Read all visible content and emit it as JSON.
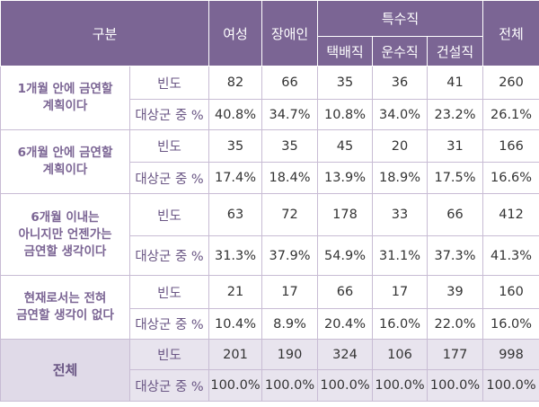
{
  "header": {
    "category": "구분",
    "female": "여성",
    "disabled": "장애인",
    "special_job": "특수직",
    "taxi": "택배직",
    "transport": "운수직",
    "construction": "건설직",
    "total": "전체"
  },
  "metric_labels": {
    "freq": "빈도",
    "pct": "대상군 중 %"
  },
  "rows": [
    {
      "label_lines": [
        "1개월 안에 금연할",
        "계획이다"
      ],
      "freq": [
        "82",
        "66",
        "35",
        "36",
        "41",
        "260"
      ],
      "pct": [
        "40.8%",
        "34.7%",
        "10.8%",
        "34.0%",
        "23.2%",
        "26.1%"
      ]
    },
    {
      "label_lines": [
        "6개월 안에 금연할",
        "계획이다"
      ],
      "freq": [
        "35",
        "35",
        "45",
        "20",
        "31",
        "166"
      ],
      "pct": [
        "17.4%",
        "18.4%",
        "13.9%",
        "18.9%",
        "17.5%",
        "16.6%"
      ]
    },
    {
      "label_lines": [
        "6개월 이내는",
        "아니지만 언젠가는",
        "금연할 생각이다"
      ],
      "freq": [
        "63",
        "72",
        "178",
        "33",
        "66",
        "412"
      ],
      "pct": [
        "31.3%",
        "37.9%",
        "54.9%",
        "31.1%",
        "37.3%",
        "41.3%"
      ]
    },
    {
      "label_lines": [
        "현재로서는 전혀",
        "금연할 생각이 없다"
      ],
      "freq": [
        "21",
        "17",
        "66",
        "17",
        "39",
        "160"
      ],
      "pct": [
        "10.4%",
        "8.9%",
        "20.4%",
        "16.0%",
        "22.0%",
        "16.0%"
      ]
    }
  ],
  "total_row": {
    "label": "전체",
    "freq": [
      "201",
      "190",
      "324",
      "106",
      "177",
      "998"
    ],
    "pct": [
      "100.0%",
      "100.0%",
      "100.0%",
      "100.0%",
      "100.0%",
      "100.0%"
    ]
  }
}
